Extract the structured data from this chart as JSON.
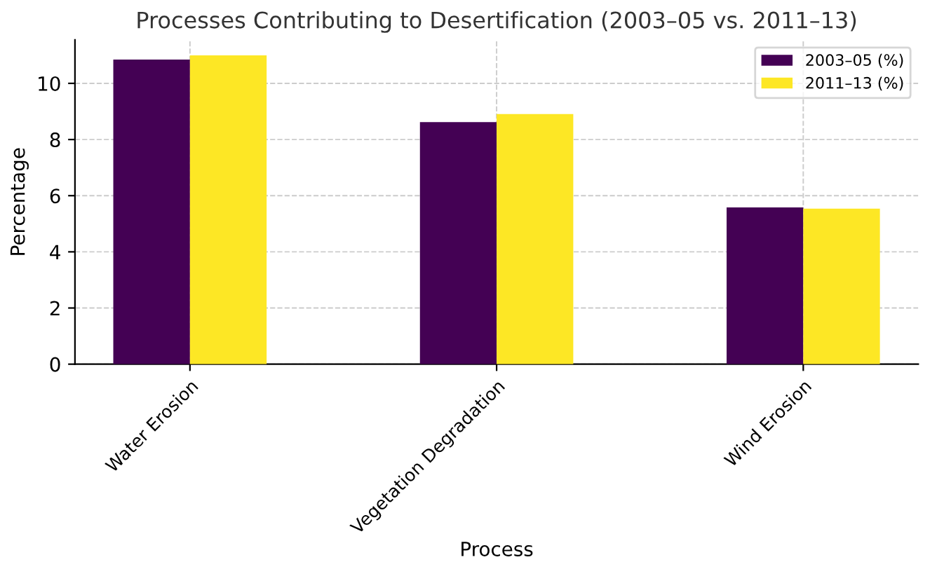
{
  "chart_data": {
    "type": "bar",
    "title": "Processes Contributing to Desertification (2003–05 vs. 2011–13)",
    "xlabel": "Process",
    "ylabel": "Percentage",
    "categories": [
      "Water Erosion",
      "Vegetation Degradation",
      "Wind Erosion"
    ],
    "series": [
      {
        "name": "2003–05 (%)",
        "color": "#440154",
        "values": [
          10.85,
          8.62,
          5.58
        ]
      },
      {
        "name": "2011–13 (%)",
        "color": "#fde725",
        "values": [
          11.0,
          8.91,
          5.54
        ]
      }
    ],
    "ylim": [
      0,
      11.55
    ],
    "yticks": [
      0,
      2,
      4,
      6,
      8,
      10
    ],
    "grid": true,
    "legend": "top right"
  }
}
